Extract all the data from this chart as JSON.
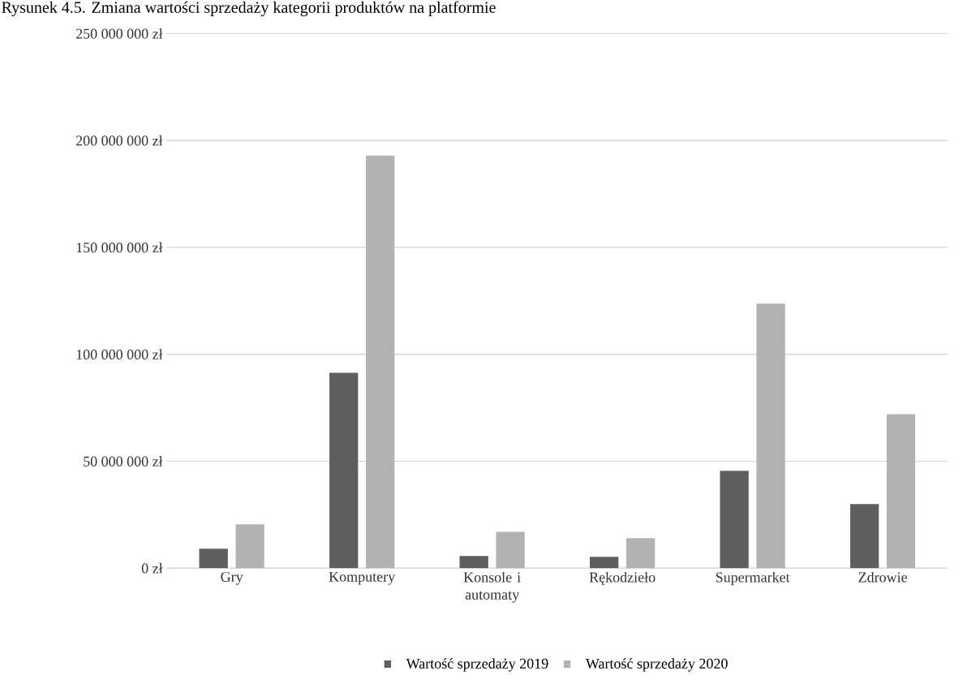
{
  "chart_data": {
    "type": "bar",
    "title": "Rysunek 4.5. Zmiana wartości sprzedaży kategorii produktów na platformie",
    "categories": [
      "Gry",
      "Komputery",
      "Konsole i automaty",
      "Rękodzieło",
      "Supermarket",
      "Zdrowie"
    ],
    "series": [
      {
        "name": "Wartość sprzedaży 2019",
        "color": "#5f5f5f",
        "values": [
          9100000,
          91400000,
          5700000,
          5300000,
          45500000,
          30000000
        ]
      },
      {
        "name": "Wartość sprzedaży 2020",
        "color": "#b2b2b2",
        "values": [
          20500000,
          193000000,
          17000000,
          14000000,
          123700000,
          72000000
        ]
      }
    ],
    "ylim": [
      0,
      250000000
    ],
    "yticks": [
      {
        "value": 0,
        "label": "0 zł"
      },
      {
        "value": 50000000,
        "label": "50 000 000 zł"
      },
      {
        "value": 100000000,
        "label": "100 000 000 zł"
      },
      {
        "value": 150000000,
        "label": "150 000 000 zł"
      },
      {
        "value": 200000000,
        "label": "200 000 000 zł"
      },
      {
        "value": 250000000,
        "label": "250 000 000 zł"
      }
    ],
    "grid": "y",
    "legend": "bottom"
  }
}
